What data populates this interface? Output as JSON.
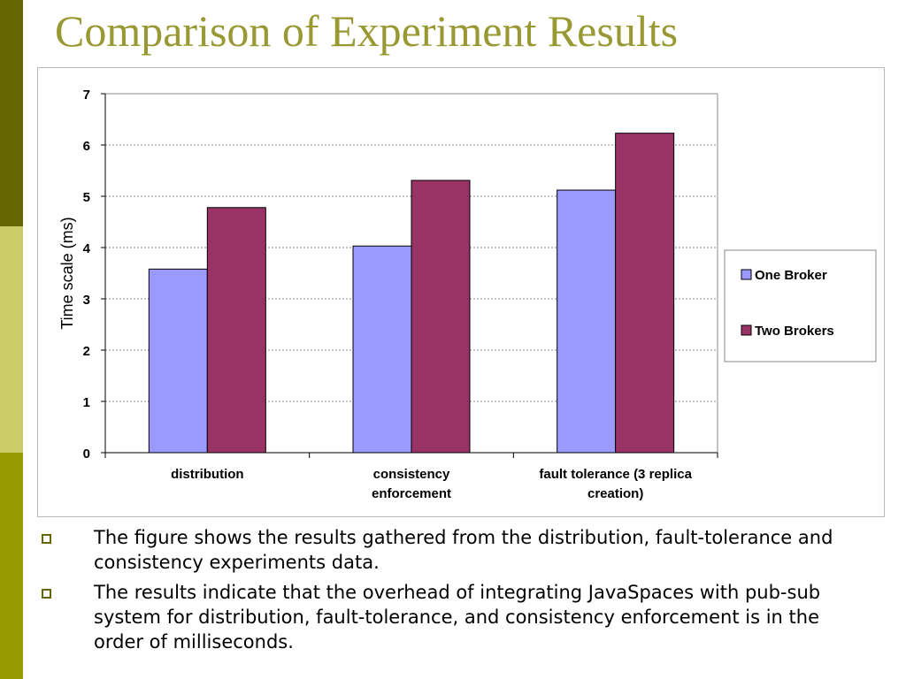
{
  "slide": {
    "title": "Comparison of Experiment Results",
    "bullets": [
      "The figure shows the results gathered from the distribution, fault-tolerance and consistency experiments data.",
      "The results indicate that the overhead of integrating JavaSpaces with pub-sub system for distribution, fault-tolerance, and consistency enforcement is in the order of milliseconds."
    ]
  },
  "colors": {
    "title": "#999933",
    "band_dark": "#666600",
    "band_light": "#CCCC66",
    "band_mid": "#999900"
  },
  "chart_data": {
    "type": "bar",
    "ylabel": "Time scale (ms)",
    "xlabel": "",
    "ylim": [
      0,
      7
    ],
    "yticks": [
      0,
      1,
      2,
      3,
      4,
      5,
      6,
      7
    ],
    "grid": "horizontal dashed",
    "legend_position": "right",
    "categories": [
      [
        "distribution"
      ],
      [
        "consistency",
        "enforcement"
      ],
      [
        "fault tolerance (3 replica",
        "creation)"
      ]
    ],
    "series": [
      {
        "name": "One Broker",
        "color": "#9999FF",
        "values": [
          3.58,
          4.03,
          5.12
        ]
      },
      {
        "name": "Two Brokers",
        "color": "#993366",
        "values": [
          4.78,
          5.31,
          6.23
        ]
      }
    ]
  }
}
